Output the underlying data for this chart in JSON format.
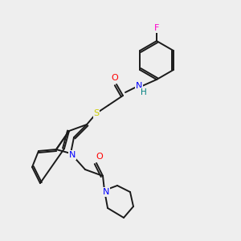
{
  "bg_color": "#eeeeee",
  "bond_color": "#1a1a1a",
  "atom_colors": {
    "F": "#ff00cc",
    "O": "#ff0000",
    "N": "#0000ff",
    "H": "#008080",
    "S": "#cccc00"
  },
  "lw": 1.4,
  "fontsize": 7.5
}
